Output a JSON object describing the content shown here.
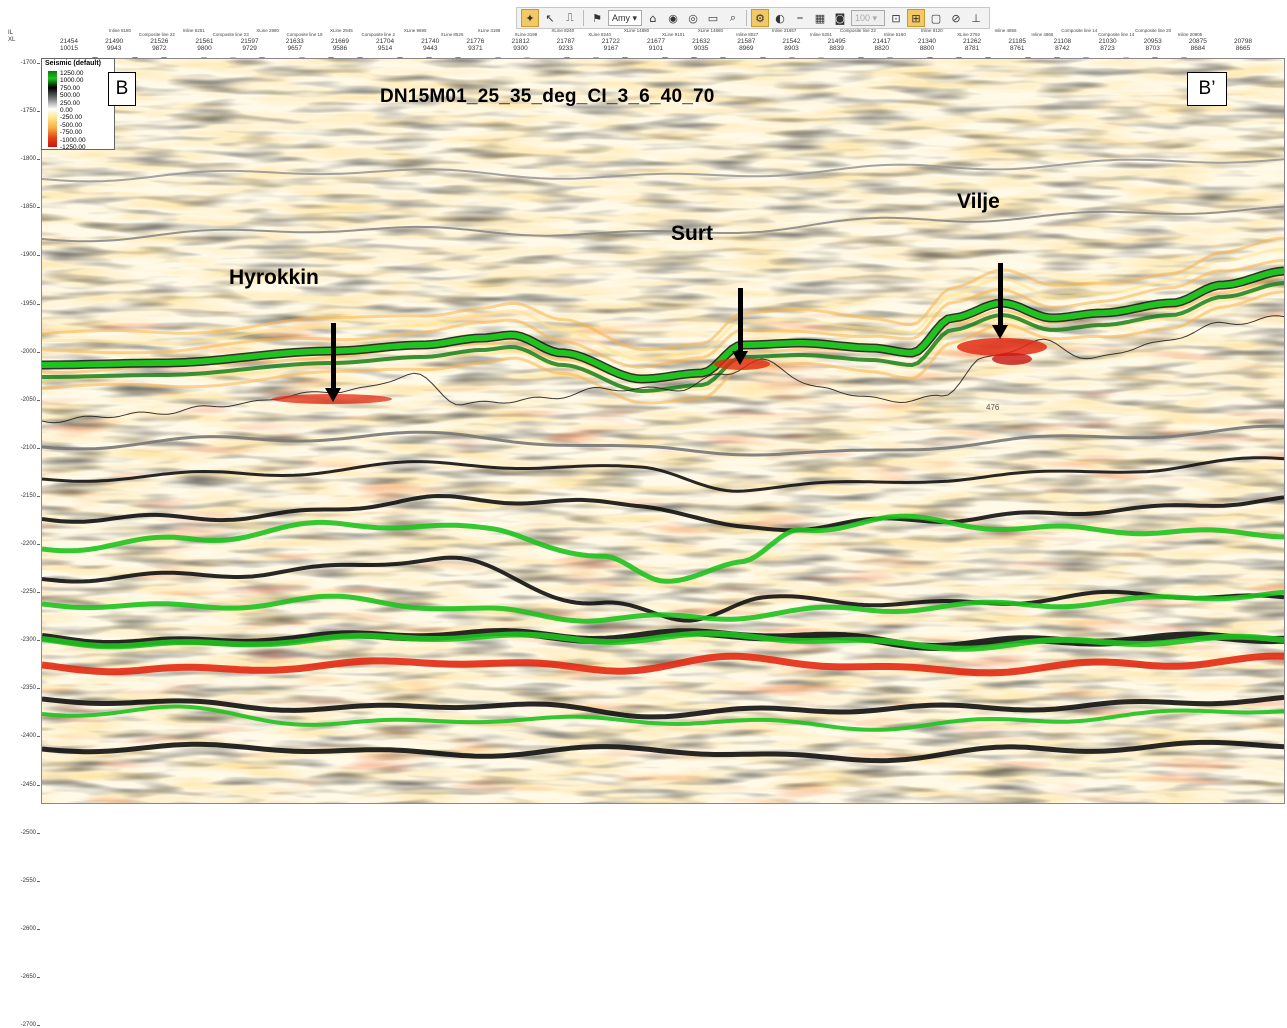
{
  "toolbar": {
    "items": [
      {
        "icon": "seismic-tool-icon",
        "active": true
      },
      {
        "icon": "pointer-icon"
      },
      {
        "icon": "ruler-icon"
      },
      {
        "sep": true
      },
      {
        "icon": "flag-icon"
      },
      {
        "select": "Amy"
      },
      {
        "icon": "home-icon"
      },
      {
        "icon": "view-icon"
      },
      {
        "icon": "view-alt-icon"
      },
      {
        "icon": "save-icon"
      },
      {
        "icon": "zoom-icon"
      },
      {
        "sep": true
      },
      {
        "icon": "display-icon",
        "active": true
      },
      {
        "icon": "palette-icon"
      },
      {
        "icon": "line-style-icon"
      },
      {
        "icon": "grid-icon"
      },
      {
        "icon": "camera-icon"
      },
      {
        "select": "100",
        "disabled": true
      },
      {
        "icon": "fit-icon"
      },
      {
        "icon": "layout-icon",
        "active": true
      },
      {
        "icon": "window-icon"
      },
      {
        "icon": "no-icon"
      },
      {
        "icon": "pin-icon"
      }
    ]
  },
  "axis": {
    "il_label": "IL",
    "xl_label": "XL",
    "columns": [
      {
        "il": "21454",
        "xl": "10015"
      },
      {
        "il": "21490",
        "xl": "9943"
      },
      {
        "il": "21526",
        "xl": "9872"
      },
      {
        "il": "21561",
        "xl": "9800"
      },
      {
        "il": "21597",
        "xl": "9729"
      },
      {
        "il": "21633",
        "xl": "9657"
      },
      {
        "il": "21669",
        "xl": "9586"
      },
      {
        "il": "21704",
        "xl": "9514"
      },
      {
        "il": "21740",
        "xl": "9443"
      },
      {
        "il": "21776",
        "xl": "9371"
      },
      {
        "il": "21812",
        "xl": "9300"
      },
      {
        "il": "21787",
        "xl": "9233"
      },
      {
        "il": "21722",
        "xl": "9167"
      },
      {
        "il": "21677",
        "xl": "9101"
      },
      {
        "il": "21632",
        "xl": "9035"
      },
      {
        "il": "21587",
        "xl": "8969"
      },
      {
        "il": "21542",
        "xl": "8903"
      },
      {
        "il": "21495",
        "xl": "8839"
      },
      {
        "il": "21417",
        "xl": "8820"
      },
      {
        "il": "21340",
        "xl": "8800"
      },
      {
        "il": "21262",
        "xl": "8781"
      },
      {
        "il": "21185",
        "xl": "8761"
      },
      {
        "il": "21108",
        "xl": "8742"
      },
      {
        "il": "21030",
        "xl": "8723"
      },
      {
        "il": "20953",
        "xl": "8703"
      },
      {
        "il": "20875",
        "xl": "8684"
      },
      {
        "il": "20798",
        "xl": "8665"
      }
    ],
    "line_labels": [
      "Inline 8180",
      "Composite line 22",
      "Inline 5251",
      "Composite line 23",
      "XLine 2980",
      "Composite line 19",
      "XLine 2945",
      "Composite line 2",
      "XLine 9695",
      "XLine 8525",
      "XLine 3198",
      "XLine 3198",
      "XLine 8240",
      "XLine 8240",
      "XLine 14880",
      "XLine 9101",
      "XLine 14880",
      "Inline 8027",
      "Inline 21657",
      "Inline 5251",
      "Composite line 22",
      "Inline 5160",
      "Inline 8120",
      "XLine 2792",
      "Inline 4866",
      "Inline 4866",
      "Composite line 14",
      "Composite line 14",
      "Composite line 20",
      "Inline 20905"
    ],
    "y_ticks": [
      "-1700",
      "-1750",
      "-1800",
      "-1850",
      "-1900",
      "-1950",
      "-2000",
      "-2050",
      "-2100",
      "-2150",
      "-2200",
      "-2250",
      "-2300",
      "-2350",
      "-2400",
      "-2450",
      "-2500",
      "-2550",
      "-2600",
      "-2650",
      "-2700"
    ]
  },
  "legend": {
    "title": "Seismic (default)",
    "values": [
      "1250.00",
      "1000.00",
      "750.00",
      "500.00",
      "250.00",
      "0.00",
      "-250.00",
      "-500.00",
      "-750.00",
      "-1000.00",
      "-1250.00"
    ]
  },
  "section": {
    "title": "DN15M01_25_35_deg_CI_3_6_40_70",
    "left_label": "B",
    "right_label": "B’",
    "small_label": "476",
    "annotations": [
      {
        "text": "Hyrokkin"
      },
      {
        "text": "Surt"
      },
      {
        "text": "Vilje"
      }
    ]
  },
  "colors": {
    "green": "#1fc21f",
    "dark_green": "#0a7a12",
    "red": "#e32a12",
    "orange": "#f7b24a",
    "yellow": "#ffe38a",
    "black": "#111111"
  }
}
